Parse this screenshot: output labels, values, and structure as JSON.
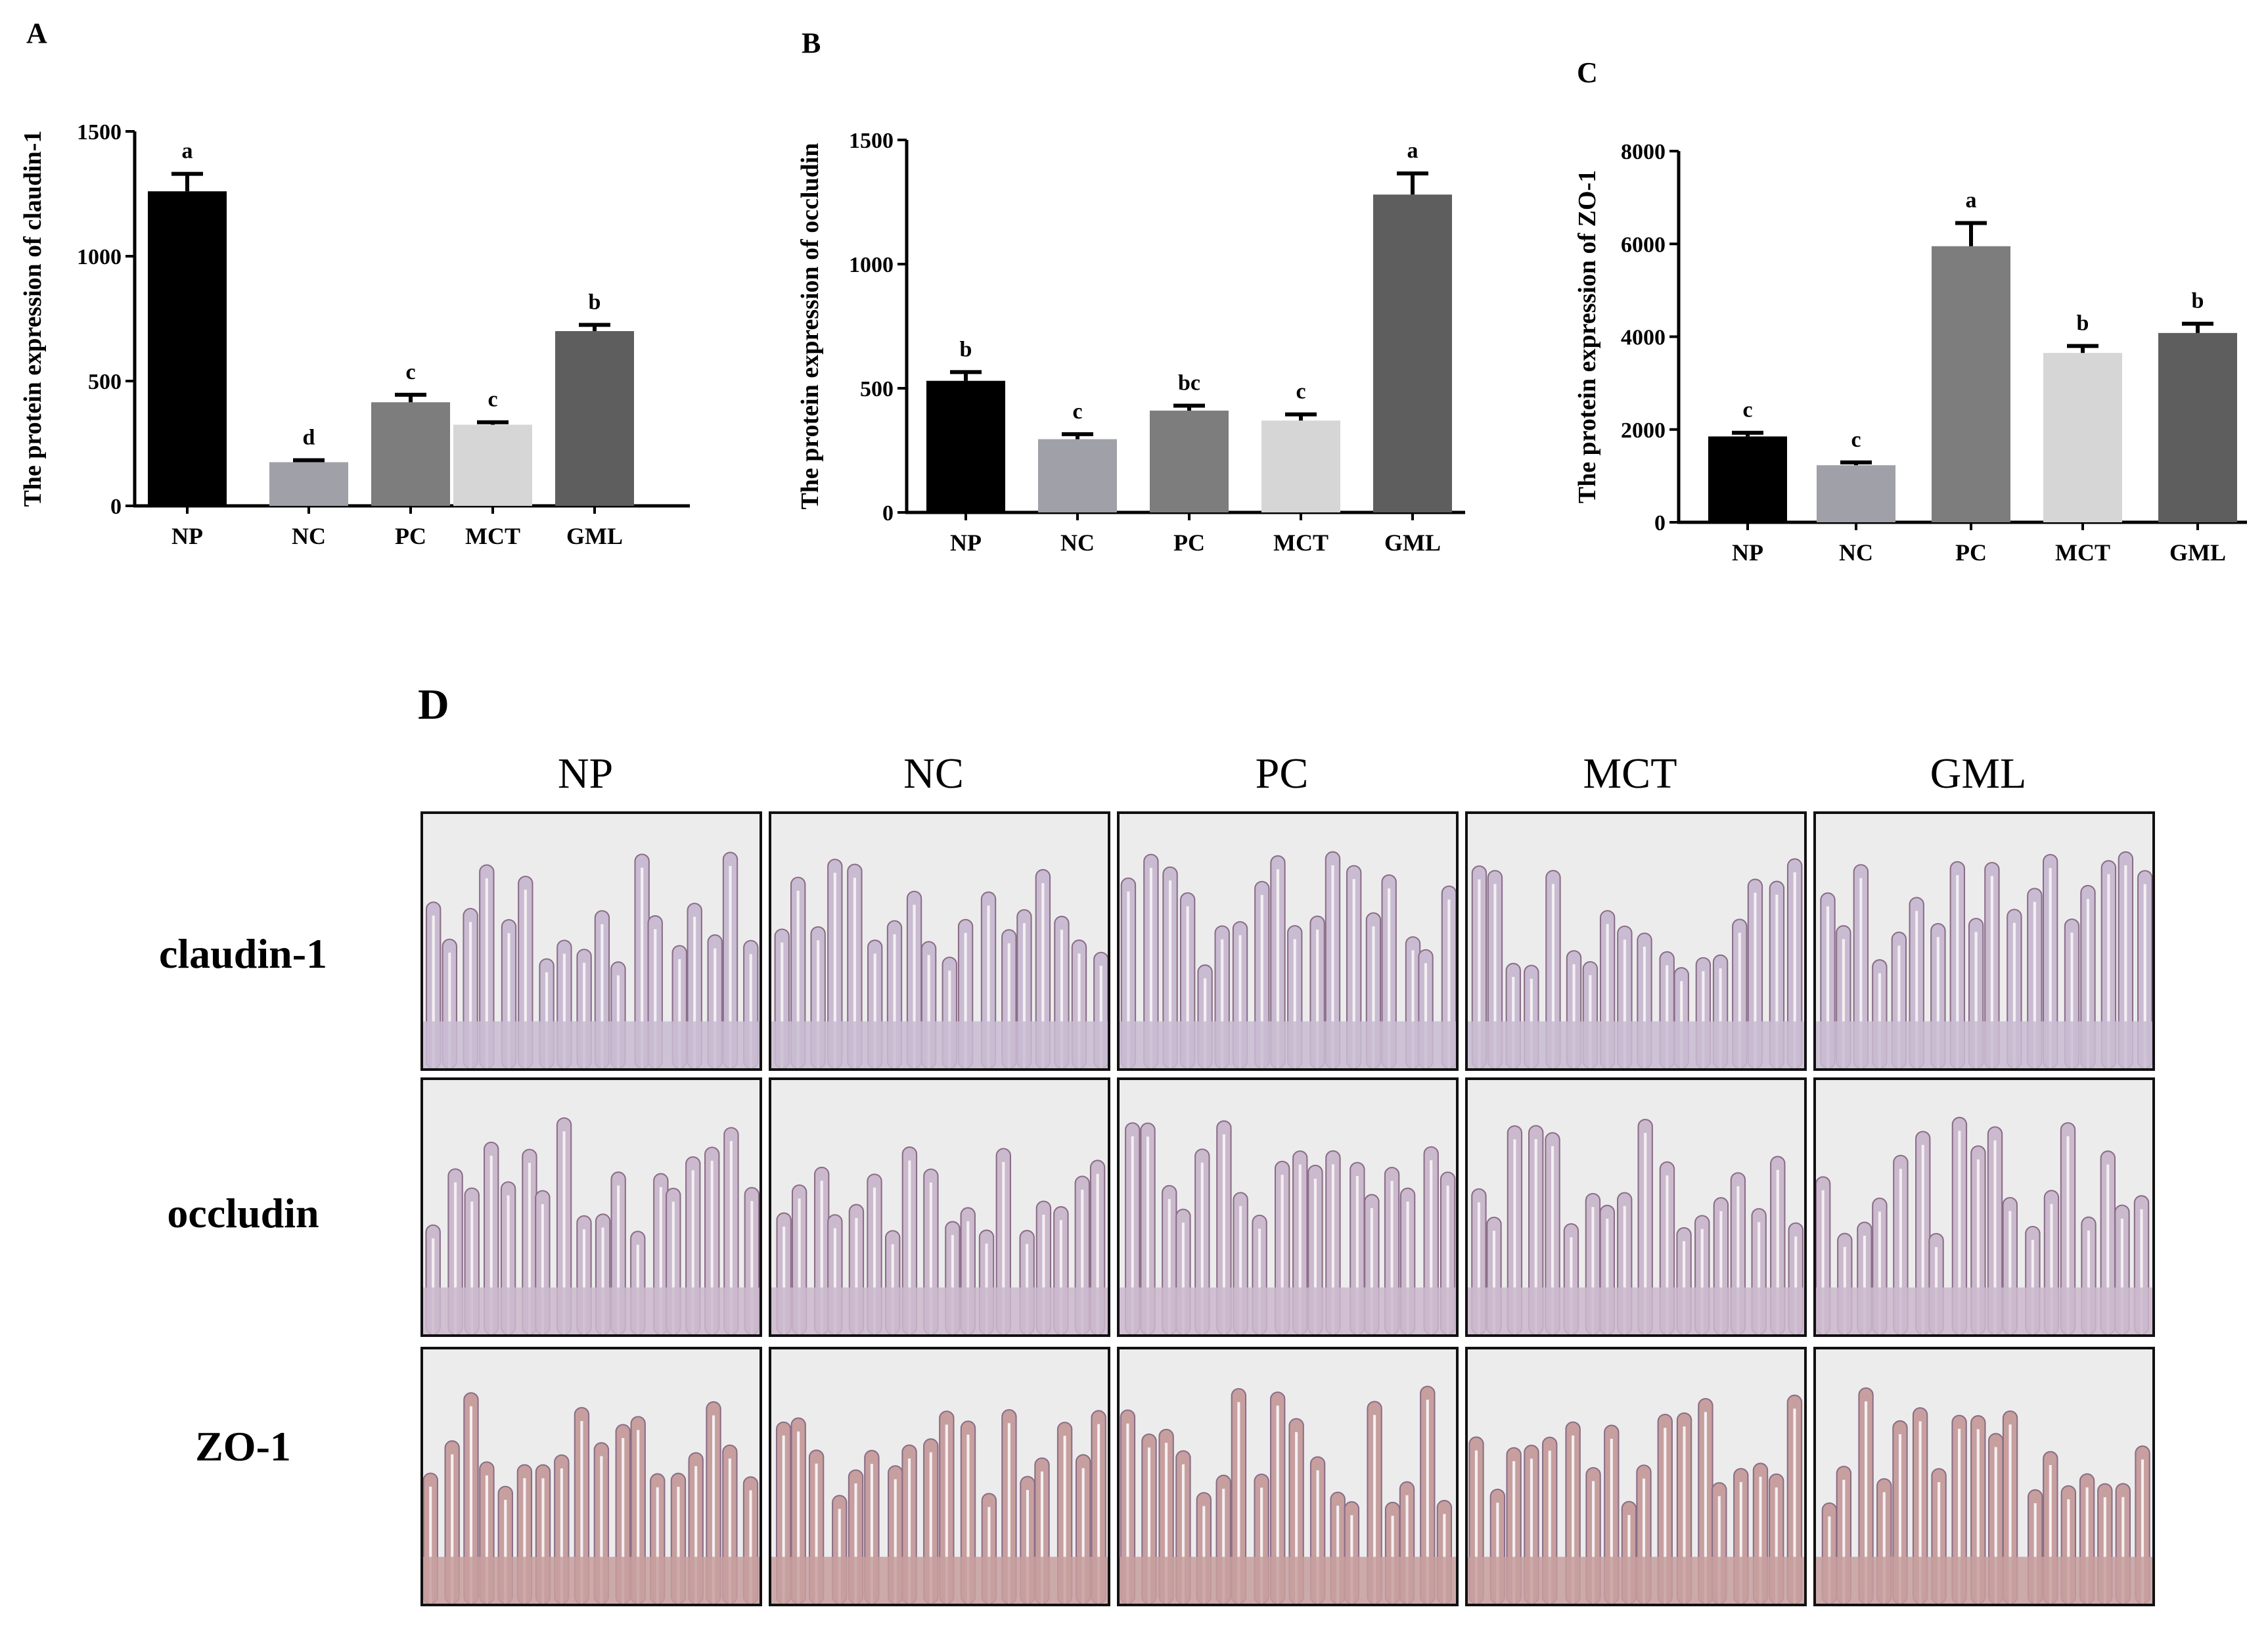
{
  "panels": {
    "A": "A",
    "B": "B",
    "C": "C",
    "D": "D"
  },
  "chart_data": [
    {
      "type": "bar",
      "panel": "A",
      "categories": [
        "NP",
        "NC",
        "PC",
        "MCT",
        "GML"
      ],
      "values": [
        1260,
        175,
        415,
        325,
        700
      ],
      "errors": [
        70,
        8,
        30,
        10,
        25
      ],
      "significance": [
        "a",
        "d",
        "c",
        "c",
        "b"
      ],
      "bar_colors": [
        "#000000",
        "#a0a0a8",
        "#7d7d7d",
        "#d6d6d6",
        "#5e5e5e"
      ],
      "ylabel": "The protein expression of  claudin-1",
      "ylim": [
        0,
        1500
      ],
      "yticks": [
        0,
        500,
        1000,
        1500
      ]
    },
    {
      "type": "bar",
      "panel": "B",
      "categories": [
        "NP",
        "NC",
        "PC",
        "MCT",
        "GML"
      ],
      "values": [
        530,
        295,
        410,
        370,
        1280
      ],
      "errors": [
        35,
        20,
        20,
        25,
        85
      ],
      "significance": [
        "b",
        "c",
        "bc",
        "c",
        "a"
      ],
      "bar_colors": [
        "#000000",
        "#a0a0a8",
        "#7d7d7d",
        "#d6d6d6",
        "#5e5e5e"
      ],
      "ylabel": "The protein expression of  occludin",
      "ylim": [
        0,
        1500
      ],
      "yticks": [
        0,
        500,
        1000,
        1500
      ]
    },
    {
      "type": "bar",
      "panel": "C",
      "categories": [
        "NP",
        "NC",
        "PC",
        "MCT",
        "GML"
      ],
      "values": [
        1850,
        1230,
        5950,
        3650,
        4080
      ],
      "errors": [
        80,
        60,
        500,
        150,
        200
      ],
      "significance": [
        "c",
        "c",
        "a",
        "b",
        "b"
      ],
      "bar_colors": [
        "#000000",
        "#a0a0a8",
        "#7d7d7d",
        "#d6d6d6",
        "#5e5e5e"
      ],
      "ylabel": "The protein expression of  ZO-1",
      "ylim": [
        0,
        8000
      ],
      "yticks": [
        0,
        2000,
        4000,
        6000,
        8000
      ]
    }
  ],
  "histology": {
    "columns": [
      "NP",
      "NC",
      "PC",
      "MCT",
      "GML"
    ],
    "rows": [
      "claudin-1",
      "occludin",
      "ZO-1"
    ]
  },
  "colors": {
    "stain_claudin": "#c9bcd2",
    "stain_occludin": "#cbb9cd",
    "stain_zo1": "#c79f9f",
    "background": "#ececec"
  }
}
